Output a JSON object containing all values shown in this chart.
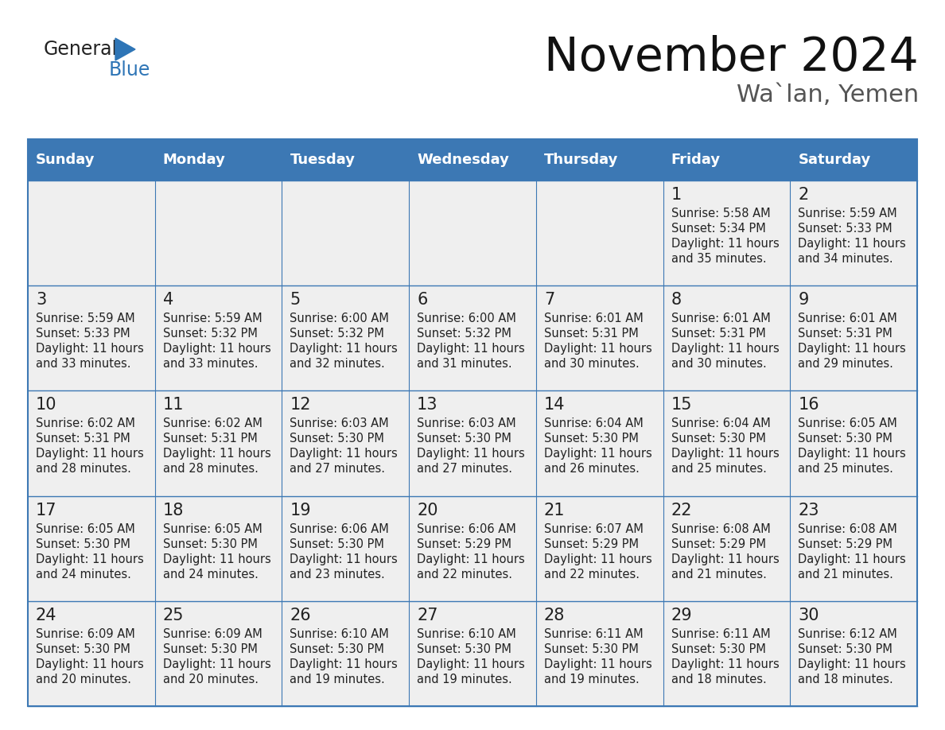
{
  "title": "November 2024",
  "subtitle": "Wa`lan, Yemen",
  "days_of_week": [
    "Sunday",
    "Monday",
    "Tuesday",
    "Wednesday",
    "Thursday",
    "Friday",
    "Saturday"
  ],
  "header_bg": "#3C78B4",
  "header_text_color": "#FFFFFF",
  "cell_bg": "#EFEFEF",
  "cell_border_color": "#3C78B4",
  "day_number_color": "#222222",
  "cell_text_color": "#222222",
  "title_color": "#111111",
  "subtitle_color": "#555555",
  "logo_general_color": "#222222",
  "logo_blue_color": "#2E75B6",
  "weeks": [
    {
      "days": [
        {
          "day": null,
          "sunrise": null,
          "sunset": null,
          "daylight_a": null,
          "daylight_b": null
        },
        {
          "day": null,
          "sunrise": null,
          "sunset": null,
          "daylight_a": null,
          "daylight_b": null
        },
        {
          "day": null,
          "sunrise": null,
          "sunset": null,
          "daylight_a": null,
          "daylight_b": null
        },
        {
          "day": null,
          "sunrise": null,
          "sunset": null,
          "daylight_a": null,
          "daylight_b": null
        },
        {
          "day": null,
          "sunrise": null,
          "sunset": null,
          "daylight_a": null,
          "daylight_b": null
        },
        {
          "day": 1,
          "sunrise": "5:58 AM",
          "sunset": "5:34 PM",
          "daylight_a": "Daylight: 11 hours",
          "daylight_b": "and 35 minutes."
        },
        {
          "day": 2,
          "sunrise": "5:59 AM",
          "sunset": "5:33 PM",
          "daylight_a": "Daylight: 11 hours",
          "daylight_b": "and 34 minutes."
        }
      ]
    },
    {
      "days": [
        {
          "day": 3,
          "sunrise": "5:59 AM",
          "sunset": "5:33 PM",
          "daylight_a": "Daylight: 11 hours",
          "daylight_b": "and 33 minutes."
        },
        {
          "day": 4,
          "sunrise": "5:59 AM",
          "sunset": "5:32 PM",
          "daylight_a": "Daylight: 11 hours",
          "daylight_b": "and 33 minutes."
        },
        {
          "day": 5,
          "sunrise": "6:00 AM",
          "sunset": "5:32 PM",
          "daylight_a": "Daylight: 11 hours",
          "daylight_b": "and 32 minutes."
        },
        {
          "day": 6,
          "sunrise": "6:00 AM",
          "sunset": "5:32 PM",
          "daylight_a": "Daylight: 11 hours",
          "daylight_b": "and 31 minutes."
        },
        {
          "day": 7,
          "sunrise": "6:01 AM",
          "sunset": "5:31 PM",
          "daylight_a": "Daylight: 11 hours",
          "daylight_b": "and 30 minutes."
        },
        {
          "day": 8,
          "sunrise": "6:01 AM",
          "sunset": "5:31 PM",
          "daylight_a": "Daylight: 11 hours",
          "daylight_b": "and 30 minutes."
        },
        {
          "day": 9,
          "sunrise": "6:01 AM",
          "sunset": "5:31 PM",
          "daylight_a": "Daylight: 11 hours",
          "daylight_b": "and 29 minutes."
        }
      ]
    },
    {
      "days": [
        {
          "day": 10,
          "sunrise": "6:02 AM",
          "sunset": "5:31 PM",
          "daylight_a": "Daylight: 11 hours",
          "daylight_b": "and 28 minutes."
        },
        {
          "day": 11,
          "sunrise": "6:02 AM",
          "sunset": "5:31 PM",
          "daylight_a": "Daylight: 11 hours",
          "daylight_b": "and 28 minutes."
        },
        {
          "day": 12,
          "sunrise": "6:03 AM",
          "sunset": "5:30 PM",
          "daylight_a": "Daylight: 11 hours",
          "daylight_b": "and 27 minutes."
        },
        {
          "day": 13,
          "sunrise": "6:03 AM",
          "sunset": "5:30 PM",
          "daylight_a": "Daylight: 11 hours",
          "daylight_b": "and 27 minutes."
        },
        {
          "day": 14,
          "sunrise": "6:04 AM",
          "sunset": "5:30 PM",
          "daylight_a": "Daylight: 11 hours",
          "daylight_b": "and 26 minutes."
        },
        {
          "day": 15,
          "sunrise": "6:04 AM",
          "sunset": "5:30 PM",
          "daylight_a": "Daylight: 11 hours",
          "daylight_b": "and 25 minutes."
        },
        {
          "day": 16,
          "sunrise": "6:05 AM",
          "sunset": "5:30 PM",
          "daylight_a": "Daylight: 11 hours",
          "daylight_b": "and 25 minutes."
        }
      ]
    },
    {
      "days": [
        {
          "day": 17,
          "sunrise": "6:05 AM",
          "sunset": "5:30 PM",
          "daylight_a": "Daylight: 11 hours",
          "daylight_b": "and 24 minutes."
        },
        {
          "day": 18,
          "sunrise": "6:05 AM",
          "sunset": "5:30 PM",
          "daylight_a": "Daylight: 11 hours",
          "daylight_b": "and 24 minutes."
        },
        {
          "day": 19,
          "sunrise": "6:06 AM",
          "sunset": "5:30 PM",
          "daylight_a": "Daylight: 11 hours",
          "daylight_b": "and 23 minutes."
        },
        {
          "day": 20,
          "sunrise": "6:06 AM",
          "sunset": "5:29 PM",
          "daylight_a": "Daylight: 11 hours",
          "daylight_b": "and 22 minutes."
        },
        {
          "day": 21,
          "sunrise": "6:07 AM",
          "sunset": "5:29 PM",
          "daylight_a": "Daylight: 11 hours",
          "daylight_b": "and 22 minutes."
        },
        {
          "day": 22,
          "sunrise": "6:08 AM",
          "sunset": "5:29 PM",
          "daylight_a": "Daylight: 11 hours",
          "daylight_b": "and 21 minutes."
        },
        {
          "day": 23,
          "sunrise": "6:08 AM",
          "sunset": "5:29 PM",
          "daylight_a": "Daylight: 11 hours",
          "daylight_b": "and 21 minutes."
        }
      ]
    },
    {
      "days": [
        {
          "day": 24,
          "sunrise": "6:09 AM",
          "sunset": "5:30 PM",
          "daylight_a": "Daylight: 11 hours",
          "daylight_b": "and 20 minutes."
        },
        {
          "day": 25,
          "sunrise": "6:09 AM",
          "sunset": "5:30 PM",
          "daylight_a": "Daylight: 11 hours",
          "daylight_b": "and 20 minutes."
        },
        {
          "day": 26,
          "sunrise": "6:10 AM",
          "sunset": "5:30 PM",
          "daylight_a": "Daylight: 11 hours",
          "daylight_b": "and 19 minutes."
        },
        {
          "day": 27,
          "sunrise": "6:10 AM",
          "sunset": "5:30 PM",
          "daylight_a": "Daylight: 11 hours",
          "daylight_b": "and 19 minutes."
        },
        {
          "day": 28,
          "sunrise": "6:11 AM",
          "sunset": "5:30 PM",
          "daylight_a": "Daylight: 11 hours",
          "daylight_b": "and 19 minutes."
        },
        {
          "day": 29,
          "sunrise": "6:11 AM",
          "sunset": "5:30 PM",
          "daylight_a": "Daylight: 11 hours",
          "daylight_b": "and 18 minutes."
        },
        {
          "day": 30,
          "sunrise": "6:12 AM",
          "sunset": "5:30 PM",
          "daylight_a": "Daylight: 11 hours",
          "daylight_b": "and 18 minutes."
        }
      ]
    }
  ]
}
